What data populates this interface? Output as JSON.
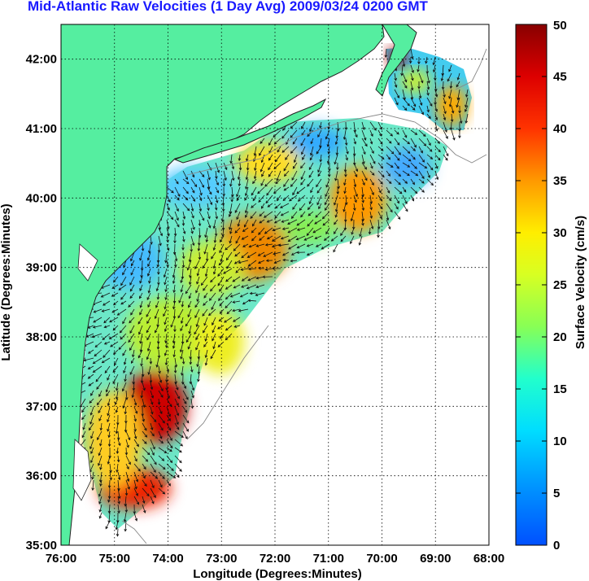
{
  "title": "Mid-Atlantic Raw Velocities (1 Day Avg) 2009/03/24 0200 GMT",
  "map": {
    "xlabel": "Longitude (Degrees:Minutes)",
    "ylabel": "Latitude (Degrees:Minutes)",
    "lon_range": [
      -76,
      -68
    ],
    "lat_range": [
      35,
      42.5
    ],
    "lon_ticks": [
      {
        "value": -76,
        "label": "76:00"
      },
      {
        "value": -75,
        "label": "75:00"
      },
      {
        "value": -74,
        "label": "74:00"
      },
      {
        "value": -73,
        "label": "73:00"
      },
      {
        "value": -72,
        "label": "72:00"
      },
      {
        "value": -71,
        "label": "71:00"
      },
      {
        "value": -70,
        "label": "70:00"
      },
      {
        "value": -69,
        "label": "69:00"
      },
      {
        "value": -68,
        "label": "68:00"
      }
    ],
    "lat_ticks": [
      {
        "value": 35,
        "label": "35:00"
      },
      {
        "value": 36,
        "label": "36:00"
      },
      {
        "value": 37,
        "label": "37:00"
      },
      {
        "value": 38,
        "label": "38:00"
      },
      {
        "value": 39,
        "label": "39:00"
      },
      {
        "value": 40,
        "label": "40:00"
      },
      {
        "value": 41,
        "label": "41:00"
      },
      {
        "value": 42,
        "label": "42:00"
      }
    ],
    "grid": "dotted",
    "land_color": "#55eea0",
    "ocean_color": "#ffffff"
  },
  "colorbar": {
    "label": "Surface Velocity (cm/s)",
    "ticks": [
      "0",
      "5",
      "10",
      "15",
      "20",
      "25",
      "30",
      "35",
      "40",
      "45",
      "50"
    ],
    "range": [
      0,
      50
    ],
    "colormap": "jet"
  }
}
